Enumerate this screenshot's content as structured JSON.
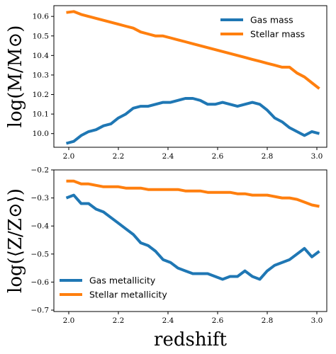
{
  "chart_data": [
    {
      "type": "line",
      "ylabel": "log(M/M⊙)",
      "xlim": [
        1.94,
        3.04
      ],
      "ylim": [
        9.93,
        10.655
      ],
      "xticks": [
        "2.0",
        "2.2",
        "2.4",
        "2.6",
        "2.8",
        "3.0"
      ],
      "xtick_values": [
        2.0,
        2.2,
        2.4,
        2.6,
        2.8,
        3.0
      ],
      "yticks": [
        "10.0",
        "10.1",
        "10.2",
        "10.3",
        "10.4",
        "10.5",
        "10.6"
      ],
      "ytick_values": [
        10.0,
        10.1,
        10.2,
        10.3,
        10.4,
        10.5,
        10.6
      ],
      "legend_position": "top-right",
      "series": [
        {
          "name": "Gas mass",
          "color": "#1f77b4",
          "x": [
            1.99,
            2.02,
            2.05,
            2.08,
            2.11,
            2.14,
            2.17,
            2.2,
            2.23,
            2.26,
            2.29,
            2.32,
            2.35,
            2.38,
            2.41,
            2.44,
            2.47,
            2.5,
            2.53,
            2.56,
            2.59,
            2.62,
            2.65,
            2.68,
            2.71,
            2.74,
            2.77,
            2.8,
            2.83,
            2.86,
            2.89,
            2.92,
            2.95,
            2.98,
            3.01
          ],
          "values": [
            9.95,
            9.96,
            9.99,
            10.01,
            10.02,
            10.04,
            10.05,
            10.08,
            10.1,
            10.13,
            10.14,
            10.14,
            10.15,
            10.16,
            10.16,
            10.17,
            10.18,
            10.18,
            10.17,
            10.15,
            10.15,
            10.16,
            10.15,
            10.14,
            10.15,
            10.16,
            10.15,
            10.12,
            10.08,
            10.06,
            10.03,
            10.01,
            9.99,
            10.01,
            10.0
          ]
        },
        {
          "name": "Stellar mass",
          "color": "#ff7f0e",
          "x": [
            1.99,
            2.02,
            2.05,
            2.08,
            2.11,
            2.14,
            2.17,
            2.2,
            2.23,
            2.26,
            2.29,
            2.32,
            2.35,
            2.38,
            2.41,
            2.44,
            2.47,
            2.5,
            2.53,
            2.56,
            2.59,
            2.62,
            2.65,
            2.68,
            2.71,
            2.74,
            2.77,
            2.8,
            2.83,
            2.86,
            2.89,
            2.92,
            2.95,
            2.98,
            3.01
          ],
          "values": [
            10.62,
            10.625,
            10.61,
            10.6,
            10.59,
            10.58,
            10.57,
            10.56,
            10.55,
            10.54,
            10.52,
            10.51,
            10.5,
            10.5,
            10.49,
            10.48,
            10.47,
            10.46,
            10.45,
            10.44,
            10.43,
            10.42,
            10.41,
            10.4,
            10.39,
            10.38,
            10.37,
            10.36,
            10.35,
            10.34,
            10.34,
            10.31,
            10.29,
            10.26,
            10.23
          ]
        }
      ]
    },
    {
      "type": "line",
      "ylabel": "log(⟨Z/Z⊙⟩)",
      "xlabel": "redshift",
      "xlim": [
        1.94,
        3.04
      ],
      "ylim": [
        -0.705,
        -0.2
      ],
      "xticks": [
        "2.0",
        "2.2",
        "2.4",
        "2.6",
        "2.8",
        "3.0"
      ],
      "xtick_values": [
        2.0,
        2.2,
        2.4,
        2.6,
        2.8,
        3.0
      ],
      "yticks": [
        "−0.2",
        "−0.3",
        "−0.4",
        "−0.5",
        "−0.6",
        "−0.7"
      ],
      "ytick_values": [
        -0.2,
        -0.3,
        -0.4,
        -0.5,
        -0.6,
        -0.7
      ],
      "legend_position": "bottom-left",
      "series": [
        {
          "name": "Gas metallicity",
          "color": "#1f77b4",
          "x": [
            1.99,
            2.02,
            2.05,
            2.08,
            2.11,
            2.14,
            2.17,
            2.2,
            2.23,
            2.26,
            2.29,
            2.32,
            2.35,
            2.38,
            2.41,
            2.44,
            2.47,
            2.5,
            2.53,
            2.56,
            2.59,
            2.62,
            2.65,
            2.68,
            2.71,
            2.74,
            2.77,
            2.8,
            2.83,
            2.86,
            2.89,
            2.92,
            2.95,
            2.98,
            3.01
          ],
          "values": [
            -0.3,
            -0.29,
            -0.32,
            -0.32,
            -0.34,
            -0.35,
            -0.37,
            -0.39,
            -0.41,
            -0.43,
            -0.46,
            -0.47,
            -0.49,
            -0.52,
            -0.53,
            -0.55,
            -0.56,
            -0.57,
            -0.57,
            -0.57,
            -0.58,
            -0.59,
            -0.58,
            -0.58,
            -0.56,
            -0.58,
            -0.59,
            -0.56,
            -0.54,
            -0.53,
            -0.52,
            -0.5,
            -0.48,
            -0.51,
            -0.49
          ]
        },
        {
          "name": "Stellar metallicity",
          "color": "#ff7f0e",
          "x": [
            1.99,
            2.02,
            2.05,
            2.08,
            2.11,
            2.14,
            2.17,
            2.2,
            2.23,
            2.26,
            2.29,
            2.32,
            2.35,
            2.38,
            2.41,
            2.44,
            2.47,
            2.5,
            2.53,
            2.56,
            2.59,
            2.62,
            2.65,
            2.68,
            2.71,
            2.74,
            2.77,
            2.8,
            2.83,
            2.86,
            2.89,
            2.92,
            2.95,
            2.98,
            3.01
          ],
          "values": [
            -0.24,
            -0.24,
            -0.25,
            -0.25,
            -0.255,
            -0.26,
            -0.26,
            -0.26,
            -0.265,
            -0.265,
            -0.265,
            -0.27,
            -0.27,
            -0.27,
            -0.27,
            -0.27,
            -0.275,
            -0.275,
            -0.275,
            -0.28,
            -0.28,
            -0.28,
            -0.28,
            -0.285,
            -0.285,
            -0.29,
            -0.29,
            -0.29,
            -0.295,
            -0.3,
            -0.3,
            -0.305,
            -0.315,
            -0.325,
            -0.33
          ]
        }
      ]
    }
  ]
}
